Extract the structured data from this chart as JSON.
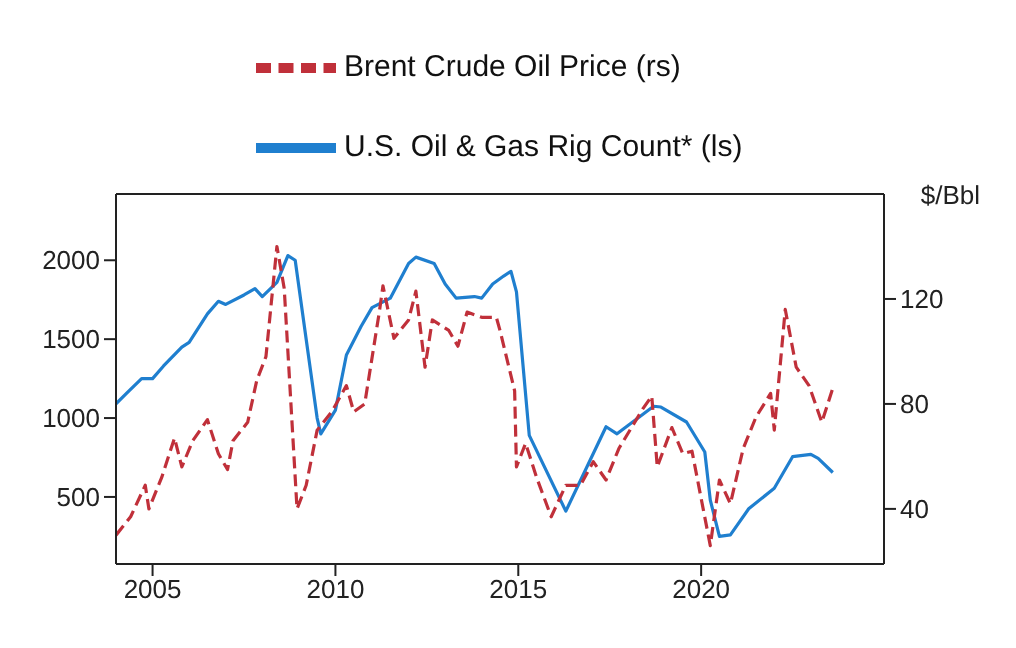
{
  "chart_data": {
    "type": "line",
    "y2label": "$/Bbl",
    "legend": "top",
    "xlim": [
      2004,
      2025
    ],
    "xticks": [
      2005,
      2010,
      2015,
      2020
    ],
    "ylim": [
      75,
      2420
    ],
    "yticks": [
      500,
      1000,
      1500,
      2000
    ],
    "y2lim": [
      19,
      160
    ],
    "y2ticks": [
      40,
      80,
      120
    ],
    "series": [
      {
        "name": "U.S. Oil & Gas Rig Count* (ls)",
        "color": "#1f7fcf",
        "line_style": "solid",
        "x": [
          2004.0,
          2004.3,
          2004.7,
          2005.0,
          2005.3,
          2005.8,
          2006.0,
          2006.5,
          2006.8,
          2007.0,
          2007.5,
          2007.8,
          2008.0,
          2008.4,
          2008.7,
          2008.9,
          2009.2,
          2009.5,
          2009.6,
          2010.0,
          2010.3,
          2010.7,
          2011.0,
          2011.5,
          2012.0,
          2012.2,
          2012.7,
          2013.0,
          2013.3,
          2013.8,
          2014.0,
          2014.3,
          2014.6,
          2014.8,
          2014.95,
          2015.3,
          2016.3,
          2017.4,
          2017.7,
          2018.7,
          2018.9,
          2019.6,
          2020.1,
          2020.25,
          2020.5,
          2020.8,
          2021.3,
          2022.0,
          2022.5,
          2023.0,
          2023.2,
          2023.6
        ],
        "values": [
          1090,
          1160,
          1250,
          1250,
          1330,
          1450,
          1480,
          1660,
          1740,
          1720,
          1780,
          1820,
          1770,
          1860,
          2030,
          2000,
          1500,
          1000,
          900,
          1050,
          1400,
          1580,
          1700,
          1760,
          1980,
          2020,
          1980,
          1850,
          1760,
          1770,
          1760,
          1850,
          1900,
          1930,
          1800,
          890,
          410,
          945,
          900,
          1075,
          1070,
          975,
          785,
          480,
          250,
          260,
          425,
          555,
          755,
          770,
          745,
          655
        ]
      },
      {
        "name": "Brent Crude Oil Price (rs)",
        "color": "#c0303a",
        "line_style": "dashed",
        "axis": "y2",
        "x": [
          2004.0,
          2004.4,
          2004.8,
          2004.9,
          2005.25,
          2005.6,
          2005.8,
          2006.1,
          2006.5,
          2006.8,
          2007.05,
          2007.2,
          2007.6,
          2007.85,
          2008.1,
          2008.4,
          2008.6,
          2008.95,
          2009.2,
          2009.5,
          2009.9,
          2010.3,
          2010.5,
          2010.8,
          2011.2,
          2011.3,
          2011.6,
          2012.0,
          2012.2,
          2012.45,
          2012.65,
          2013.1,
          2013.35,
          2013.6,
          2014.0,
          2014.4,
          2014.5,
          2014.9,
          2014.95,
          2015.2,
          2015.5,
          2015.9,
          2016.3,
          2016.7,
          2017.05,
          2017.4,
          2017.75,
          2018.4,
          2018.65,
          2018.8,
          2019.2,
          2019.5,
          2019.75,
          2020.25,
          2020.5,
          2020.8,
          2021.15,
          2021.5,
          2021.9,
          2022.0,
          2022.3,
          2022.6,
          2022.95,
          2023.3,
          2023.6
        ],
        "values": [
          30,
          37,
          49,
          40,
          52,
          67,
          56,
          66,
          74,
          61,
          55,
          66,
          73,
          89,
          98,
          140,
          124,
          40,
          49,
          70,
          77,
          87,
          77,
          80,
          115,
          125,
          105,
          112,
          123,
          94,
          112,
          108,
          102,
          115,
          113,
          113,
          108,
          85,
          56,
          65,
          52,
          37,
          49,
          49,
          58,
          51,
          63,
          78,
          83,
          56,
          71,
          61,
          62,
          26,
          51,
          42,
          63,
          75,
          84,
          70,
          116,
          94,
          87,
          73,
          86
        ]
      }
    ]
  }
}
